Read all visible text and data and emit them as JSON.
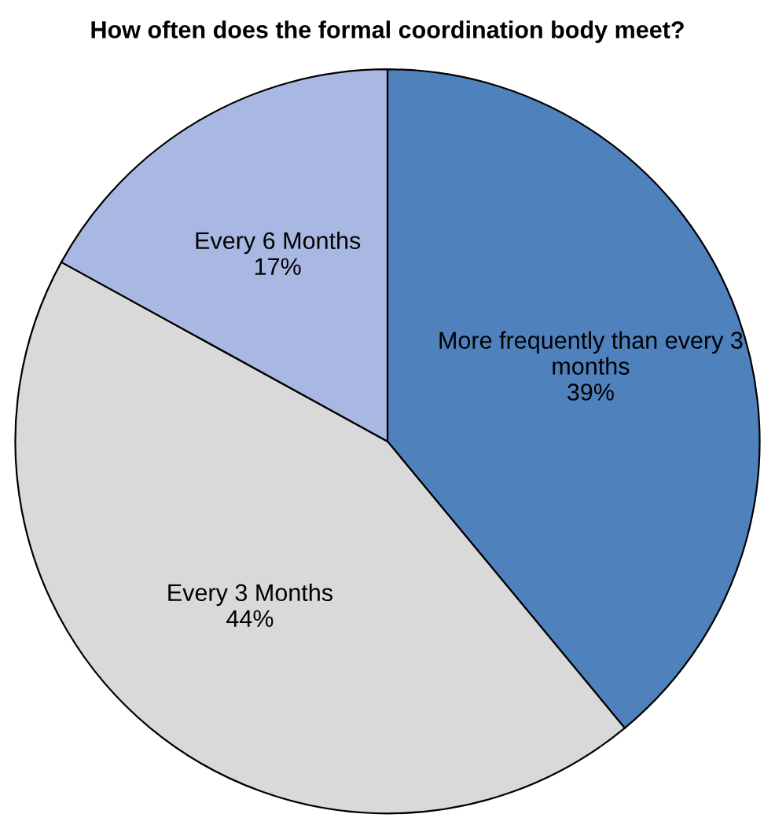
{
  "chart_data": {
    "type": "pie",
    "title": "How often does the formal coordination body meet?",
    "categories": [
      "More frequently than every 3 months",
      "Every 3 Months",
      "Every 6 Months"
    ],
    "values": [
      39,
      44,
      17
    ],
    "value_labels": [
      "39%",
      "44%",
      "17%"
    ],
    "colors": [
      "#4f81bd",
      "#d9d9d9",
      "#a9b8e3"
    ],
    "legend": false
  }
}
